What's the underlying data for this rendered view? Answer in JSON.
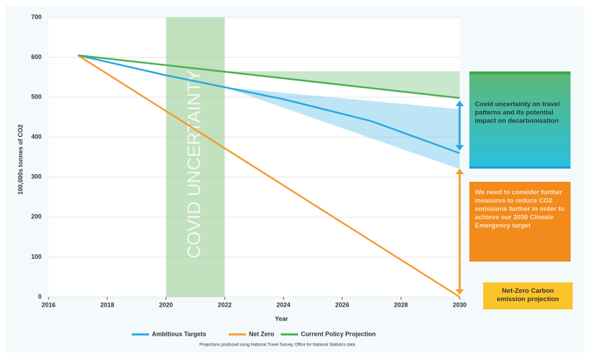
{
  "chart_data": {
    "type": "line",
    "x_label": "Year",
    "y_label": "100,000s tonnes of CO2",
    "xlim": [
      2016,
      2030
    ],
    "xticks": [
      2016,
      2018,
      2020,
      2022,
      2024,
      2026,
      2028,
      2030
    ],
    "ylim": [
      0,
      700
    ],
    "yticks": [
      0,
      100,
      200,
      300,
      400,
      500,
      600,
      700
    ],
    "grid": true,
    "series": [
      {
        "name": "Ambitious Targets",
        "color": "#29a8e0",
        "x": [
          2017,
          2020,
          2022,
          2024,
          2027,
          2030
        ],
        "values": [
          605,
          555,
          525,
          495,
          440,
          360
        ]
      },
      {
        "name": "Net Zero",
        "color": "#f39c34",
        "x": [
          2017,
          2030
        ],
        "values": [
          605,
          0
        ]
      },
      {
        "name": "Current Policy Projection",
        "color": "#4caf50",
        "x": [
          2017,
          2030
        ],
        "values": [
          605,
          498
        ]
      }
    ],
    "bands": [
      {
        "color": "#4caf50",
        "x": [
          2022,
          2030
        ],
        "lower": [
          564,
          498
        ],
        "upper": [
          565,
          565
        ]
      },
      {
        "color": "#29a8e0",
        "x": [
          2022,
          2030
        ],
        "lower": [
          525,
          320
        ],
        "upper": [
          525,
          470
        ]
      }
    ],
    "covid_period": {
      "label": "COVID UNCERTAINTY",
      "x": [
        2020,
        2022
      ]
    },
    "annotations": [
      "Covid uncertainty on travel patterns and its potential impact on decarbonisation",
      "We need to consider further measures to reduce CO2 emissions further in order to achieve our 2030 Climate Emergency target",
      "Net-Zero Carbon emission projection"
    ],
    "footnote": "Projections produced using National Travel Survey, Office for National Statistics data"
  }
}
